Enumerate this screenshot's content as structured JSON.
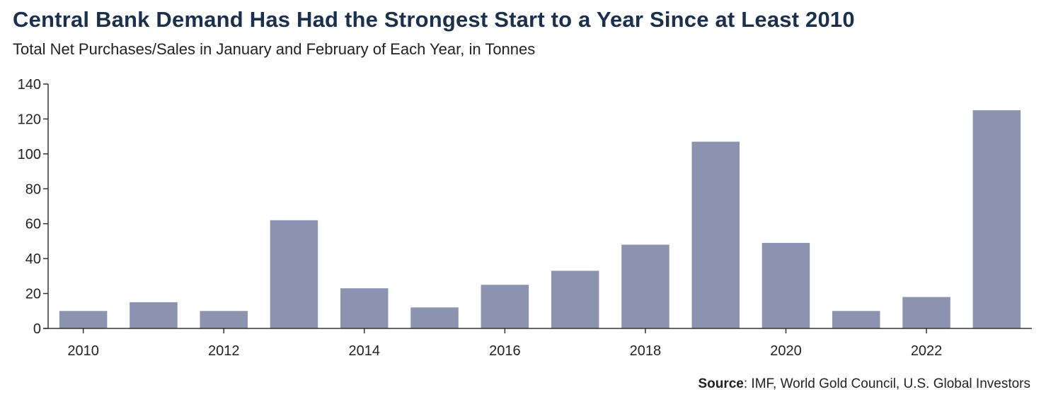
{
  "title": "Central Bank Demand Has Had the Strongest Start to a Year Since at Least 2010",
  "subtitle": "Total Net Purchases/Sales in January and February of Each Year, in Tonnes",
  "source": {
    "label": "Source",
    "text": ": IMF, World Gold Council, U.S. Global Investors"
  },
  "colors": {
    "bar": "#8c93b0",
    "axis": "#333333",
    "title": "#1b2f4e"
  },
  "chart_data": {
    "type": "bar",
    "categories": [
      "2010",
      "2011",
      "2012",
      "2013",
      "2014",
      "2015",
      "2016",
      "2017",
      "2018",
      "2019",
      "2020",
      "2021",
      "2022",
      "2023"
    ],
    "values": [
      10,
      15,
      10,
      62,
      23,
      12,
      25,
      33,
      48,
      107,
      49,
      10,
      18,
      125
    ],
    "x_tick_labels": [
      "2010",
      "2012",
      "2014",
      "2016",
      "2018",
      "2020",
      "2022"
    ],
    "y_ticks": [
      0,
      20,
      40,
      60,
      80,
      100,
      120,
      140
    ],
    "ylim": [
      0,
      140
    ],
    "grid": false,
    "legend": "none"
  }
}
